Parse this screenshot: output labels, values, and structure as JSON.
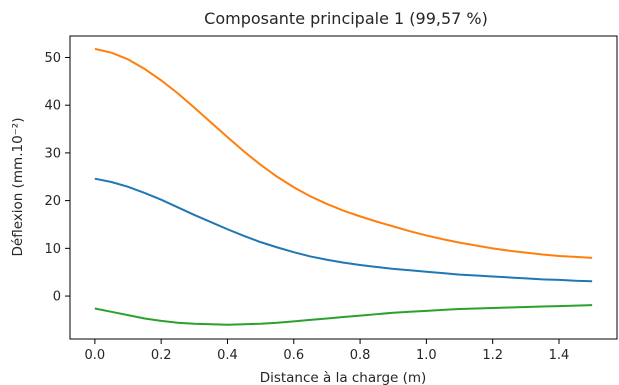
{
  "chart_data": {
    "type": "line",
    "title": "Composante principale 1 (99,57 %)",
    "xlabel": "Distance à la charge (m)",
    "ylabel": "Déflexion (mm.10⁻²)",
    "xlim": [
      -0.075,
      1.575
    ],
    "ylim": [
      -9,
      54.5
    ],
    "xticks": [
      0.0,
      0.2,
      0.4,
      0.6,
      0.8,
      1.0,
      1.2,
      1.4
    ],
    "xtick_labels": [
      "0.0",
      "0.2",
      "0.4",
      "0.6",
      "0.8",
      "1.0",
      "1.2",
      "1.4"
    ],
    "yticks": [
      0,
      10,
      20,
      30,
      40,
      50
    ],
    "ytick_labels": [
      "0",
      "10",
      "20",
      "30",
      "40",
      "50"
    ],
    "grid": false,
    "series": [
      {
        "color": "#1f77b4",
        "x": [
          0.0,
          0.05,
          0.1,
          0.15,
          0.2,
          0.25,
          0.3,
          0.35,
          0.4,
          0.45,
          0.5,
          0.55,
          0.6,
          0.65,
          0.7,
          0.75,
          0.8,
          0.85,
          0.9,
          0.95,
          1.0,
          1.05,
          1.1,
          1.15,
          1.2,
          1.25,
          1.3,
          1.35,
          1.4,
          1.45,
          1.5
        ],
        "y": [
          24.6,
          23.9,
          22.9,
          21.6,
          20.2,
          18.6,
          17.0,
          15.5,
          14.0,
          12.6,
          11.3,
          10.2,
          9.2,
          8.3,
          7.6,
          7.0,
          6.5,
          6.1,
          5.7,
          5.4,
          5.1,
          4.8,
          4.5,
          4.3,
          4.1,
          3.9,
          3.7,
          3.5,
          3.4,
          3.2,
          3.1
        ]
      },
      {
        "color": "#ff7f0e",
        "x": [
          0.0,
          0.05,
          0.1,
          0.15,
          0.2,
          0.25,
          0.3,
          0.35,
          0.4,
          0.45,
          0.5,
          0.55,
          0.6,
          0.65,
          0.7,
          0.75,
          0.8,
          0.85,
          0.9,
          0.95,
          1.0,
          1.05,
          1.1,
          1.15,
          1.2,
          1.25,
          1.3,
          1.35,
          1.4,
          1.45,
          1.5
        ],
        "y": [
          51.8,
          51.0,
          49.6,
          47.6,
          45.2,
          42.5,
          39.5,
          36.4,
          33.3,
          30.3,
          27.5,
          25.0,
          22.8,
          20.9,
          19.3,
          17.9,
          16.7,
          15.6,
          14.6,
          13.6,
          12.7,
          11.9,
          11.2,
          10.6,
          10.0,
          9.5,
          9.1,
          8.7,
          8.4,
          8.2,
          8.0
        ]
      },
      {
        "color": "#2ca02c",
        "x": [
          0.0,
          0.05,
          0.1,
          0.15,
          0.2,
          0.25,
          0.3,
          0.35,
          0.4,
          0.45,
          0.5,
          0.55,
          0.6,
          0.65,
          0.7,
          0.75,
          0.8,
          0.85,
          0.9,
          0.95,
          1.0,
          1.05,
          1.1,
          1.15,
          1.2,
          1.25,
          1.3,
          1.35,
          1.4,
          1.45,
          1.5
        ],
        "y": [
          -2.6,
          -3.3,
          -4.0,
          -4.7,
          -5.2,
          -5.6,
          -5.8,
          -5.9,
          -6.0,
          -5.9,
          -5.8,
          -5.6,
          -5.3,
          -5.0,
          -4.7,
          -4.4,
          -4.1,
          -3.8,
          -3.5,
          -3.3,
          -3.1,
          -2.9,
          -2.7,
          -2.6,
          -2.5,
          -2.4,
          -2.3,
          -2.2,
          -2.1,
          -2.0,
          -1.9
        ]
      }
    ]
  }
}
